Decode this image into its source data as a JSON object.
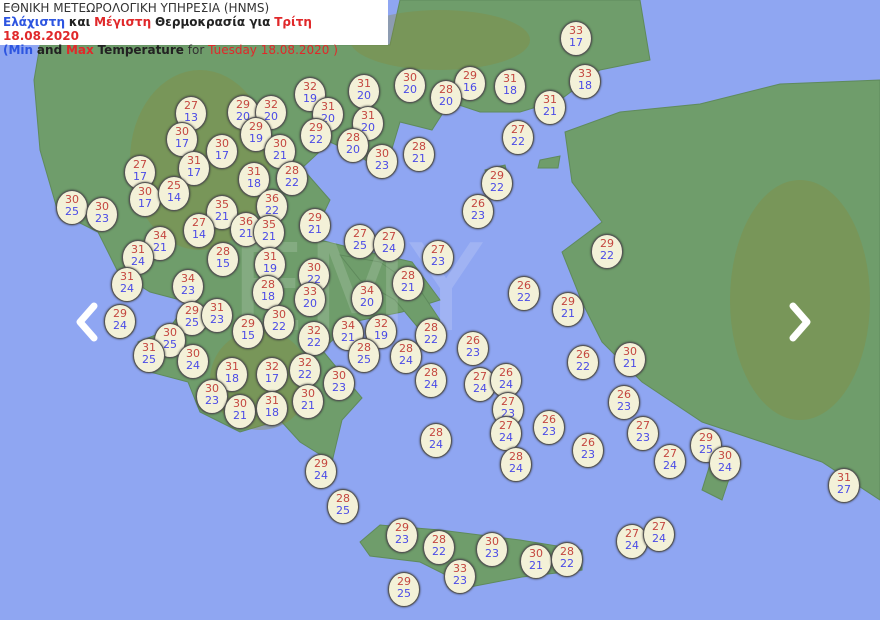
{
  "header": {
    "agency": "ΕΘΝΙΚΗ ΜΕΤΕΩΡΟΛΟΓΙΚΗ ΥΠΗΡΕΣΙΑ (HNMS)",
    "gr_min": "Ελάχιστη",
    "gr_and": "και",
    "gr_max": "Μέγιστη",
    "gr_temp": "Θερμοκρασία για",
    "gr_date": "Τρίτη 18.08.2020",
    "en_open": "(",
    "en_min": "Min",
    "en_and": "and",
    "en_max": "Max",
    "en_temp": "Temperature",
    "en_for": "for",
    "en_date": "Tuesday 18.08.2020 )"
  },
  "watermark": "EMY",
  "colors": {
    "sea": "#8fa6f2",
    "land": "#6f9d6b",
    "max": "#c4463f",
    "min": "#4a4ae6"
  },
  "nav": {
    "prev_icon": "chevron-left-icon",
    "next_icon": "chevron-right-icon"
  },
  "stations": [
    {
      "max": "33",
      "min": "17"
    },
    {
      "max": "33",
      "min": "18"
    },
    {
      "max": "31",
      "min": "21"
    },
    {
      "max": "31",
      "min": "18"
    },
    {
      "max": "29",
      "min": "16"
    },
    {
      "max": "28",
      "min": "20"
    },
    {
      "max": "30",
      "min": "20"
    },
    {
      "max": "31",
      "min": "20"
    },
    {
      "max": "32",
      "min": "19"
    },
    {
      "max": "31",
      "min": "20"
    },
    {
      "max": "31",
      "min": "20"
    },
    {
      "max": "29",
      "min": "22"
    },
    {
      "max": "28",
      "min": "20"
    },
    {
      "max": "30",
      "min": "23"
    },
    {
      "max": "28",
      "min": "21"
    },
    {
      "max": "27",
      "min": "22"
    },
    {
      "max": "29",
      "min": "22"
    },
    {
      "max": "26",
      "min": "23"
    },
    {
      "max": "27",
      "min": "13"
    },
    {
      "max": "29",
      "min": "20"
    },
    {
      "max": "32",
      "min": "20"
    },
    {
      "max": "29",
      "min": "19"
    },
    {
      "max": "30",
      "min": "17"
    },
    {
      "max": "30",
      "min": "17"
    },
    {
      "max": "30",
      "min": "21"
    },
    {
      "max": "27",
      "min": "17"
    },
    {
      "max": "31",
      "min": "17"
    },
    {
      "max": "31",
      "min": "18"
    },
    {
      "max": "28",
      "min": "22"
    },
    {
      "max": "30",
      "min": "17"
    },
    {
      "max": "25",
      "min": "14"
    },
    {
      "max": "30",
      "min": "25"
    },
    {
      "max": "30",
      "min": "23"
    },
    {
      "max": "35",
      "min": "21"
    },
    {
      "max": "36",
      "min": "22"
    },
    {
      "max": "27",
      "min": "14"
    },
    {
      "max": "36",
      "min": "21"
    },
    {
      "max": "35",
      "min": "21"
    },
    {
      "max": "29",
      "min": "21"
    },
    {
      "max": "27",
      "min": "25"
    },
    {
      "max": "27",
      "min": "24"
    },
    {
      "max": "27",
      "min": "23"
    },
    {
      "max": "34",
      "min": "21"
    },
    {
      "max": "31",
      "min": "24"
    },
    {
      "max": "28",
      "min": "15"
    },
    {
      "max": "31",
      "min": "19"
    },
    {
      "max": "30",
      "min": "22"
    },
    {
      "max": "31",
      "min": "24"
    },
    {
      "max": "34",
      "min": "23"
    },
    {
      "max": "28",
      "min": "18"
    },
    {
      "max": "33",
      "min": "20"
    },
    {
      "max": "34",
      "min": "20"
    },
    {
      "max": "28",
      "min": "21"
    },
    {
      "max": "26",
      "min": "22"
    },
    {
      "max": "29",
      "min": "22"
    },
    {
      "max": "29",
      "min": "21"
    },
    {
      "max": "29",
      "min": "24"
    },
    {
      "max": "29",
      "min": "25"
    },
    {
      "max": "31",
      "min": "23"
    },
    {
      "max": "29",
      "min": "15"
    },
    {
      "max": "30",
      "min": "22"
    },
    {
      "max": "32",
      "min": "22"
    },
    {
      "max": "34",
      "min": "21"
    },
    {
      "max": "32",
      "min": "19"
    },
    {
      "max": "28",
      "min": "22"
    },
    {
      "max": "30",
      "min": "25"
    },
    {
      "max": "31",
      "min": "25"
    },
    {
      "max": "30",
      "min": "24"
    },
    {
      "max": "28",
      "min": "25"
    },
    {
      "max": "28",
      "min": "24"
    },
    {
      "max": "28",
      "min": "24"
    },
    {
      "max": "26",
      "min": "23"
    },
    {
      "max": "26",
      "min": "22"
    },
    {
      "max": "30",
      "min": "21"
    },
    {
      "max": "31",
      "min": "18"
    },
    {
      "max": "32",
      "min": "17"
    },
    {
      "max": "32",
      "min": "22"
    },
    {
      "max": "30",
      "min": "23"
    },
    {
      "max": "30",
      "min": "23"
    },
    {
      "max": "30",
      "min": "21"
    },
    {
      "max": "31",
      "min": "18"
    },
    {
      "max": "30",
      "min": "21"
    },
    {
      "max": "27",
      "min": "24"
    },
    {
      "max": "26",
      "min": "24"
    },
    {
      "max": "27",
      "min": "23"
    },
    {
      "max": "27",
      "min": "24"
    },
    {
      "max": "26",
      "min": "23"
    },
    {
      "max": "26",
      "min": "23"
    },
    {
      "max": "28",
      "min": "24"
    },
    {
      "max": "26",
      "min": "23"
    },
    {
      "max": "27",
      "min": "23"
    },
    {
      "max": "27",
      "min": "24"
    },
    {
      "max": "29",
      "min": "25"
    },
    {
      "max": "30",
      "min": "24"
    },
    {
      "max": "31",
      "min": "27"
    },
    {
      "max": "29",
      "min": "24"
    },
    {
      "max": "28",
      "min": "24"
    },
    {
      "max": "28",
      "min": "25"
    },
    {
      "max": "29",
      "min": "23"
    },
    {
      "max": "28",
      "min": "22"
    },
    {
      "max": "30",
      "min": "23"
    },
    {
      "max": "30",
      "min": "21"
    },
    {
      "max": "28",
      "min": "22"
    },
    {
      "max": "33",
      "min": "23"
    },
    {
      "max": "27",
      "min": "24"
    },
    {
      "max": "27",
      "min": "24"
    },
    {
      "max": "29",
      "min": "25"
    }
  ]
}
